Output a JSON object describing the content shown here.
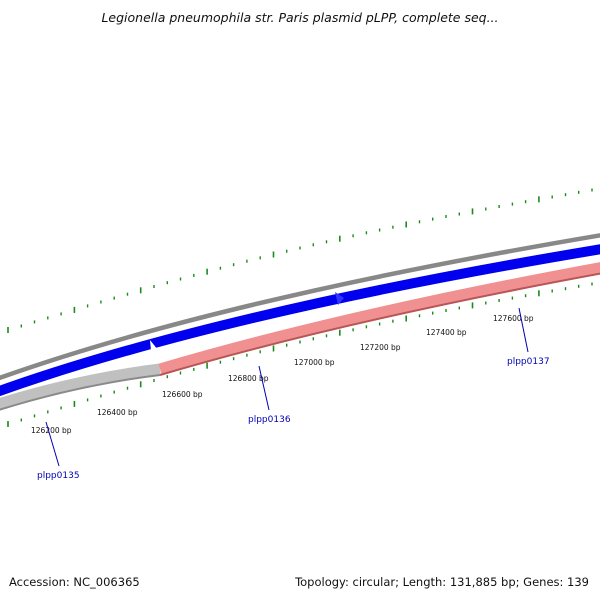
{
  "title": "Legionella pneumophila str. Paris plasmid pLPP, complete seq...",
  "footer": {
    "accession": "Accession: NC_006365",
    "summary": "Topology: circular; Length: 131,885 bp; Genes: 139"
  },
  "position_labels": [
    "126200 bp",
    "126400 bp",
    "126600 bp",
    "126800 bp",
    "127000 bp",
    "127200 bp",
    "127400 bp",
    "127600 bp"
  ],
  "genes": [
    {
      "name": "plpp0135"
    },
    {
      "name": "plpp0136"
    },
    {
      "name": "plpp0137"
    }
  ],
  "colors": {
    "backbone": "#888888",
    "cds_forward": "#0000ee",
    "gene_reverse_selected": "#f09090",
    "gene_reverse_other": "#c0c0c0",
    "ticks": "#1a8c1a",
    "gene_label": "#0000b4"
  }
}
